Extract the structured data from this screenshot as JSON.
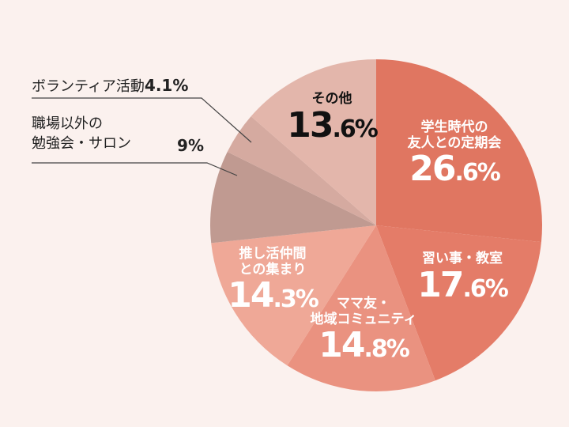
{
  "chart_data": {
    "type": "pie",
    "title": "",
    "start_angle": "top",
    "direction": "clockwise",
    "slices": [
      {
        "label": "学生時代の友人との定期会",
        "label_lines": [
          "学生時代の",
          "友人との定期会"
        ],
        "value": 26.6,
        "pct_int": "26",
        "pct_dec": ".6%",
        "color": "#E07661"
      },
      {
        "label": "習い事・教室",
        "label_lines": [
          "習い事・教室"
        ],
        "value": 17.6,
        "pct_int": "17",
        "pct_dec": ".6%",
        "color": "#E47C68"
      },
      {
        "label": "ママ友・地域コミュニティ",
        "label_lines": [
          "ママ友・",
          "地域コミュニティ"
        ],
        "value": 14.8,
        "pct_int": "14",
        "pct_dec": ".8%",
        "color": "#EA9280"
      },
      {
        "label": "推し活仲間との集まり",
        "label_lines": [
          "推し活仲間",
          "との集まり"
        ],
        "value": 14.3,
        "pct_int": "14",
        "pct_dec": ".3%",
        "color": "#EFA897"
      },
      {
        "label": "職場以外の勉強会・サロン",
        "label_lines": [
          "職場以外の",
          "勉強会・サロン"
        ],
        "value": 9,
        "pct_text": "9%",
        "color": "#C09A91"
      },
      {
        "label": "ボランティア活動",
        "label_lines": [
          "ボランティア活動"
        ],
        "value": 4.1,
        "pct_text": "4.1%",
        "color": "#D5AAA0"
      },
      {
        "label": "その他",
        "label_lines": [
          "その他"
        ],
        "value": 13.6,
        "pct_int": "13",
        "pct_dec": ".6%",
        "color": "#E3B6AB"
      }
    ]
  }
}
